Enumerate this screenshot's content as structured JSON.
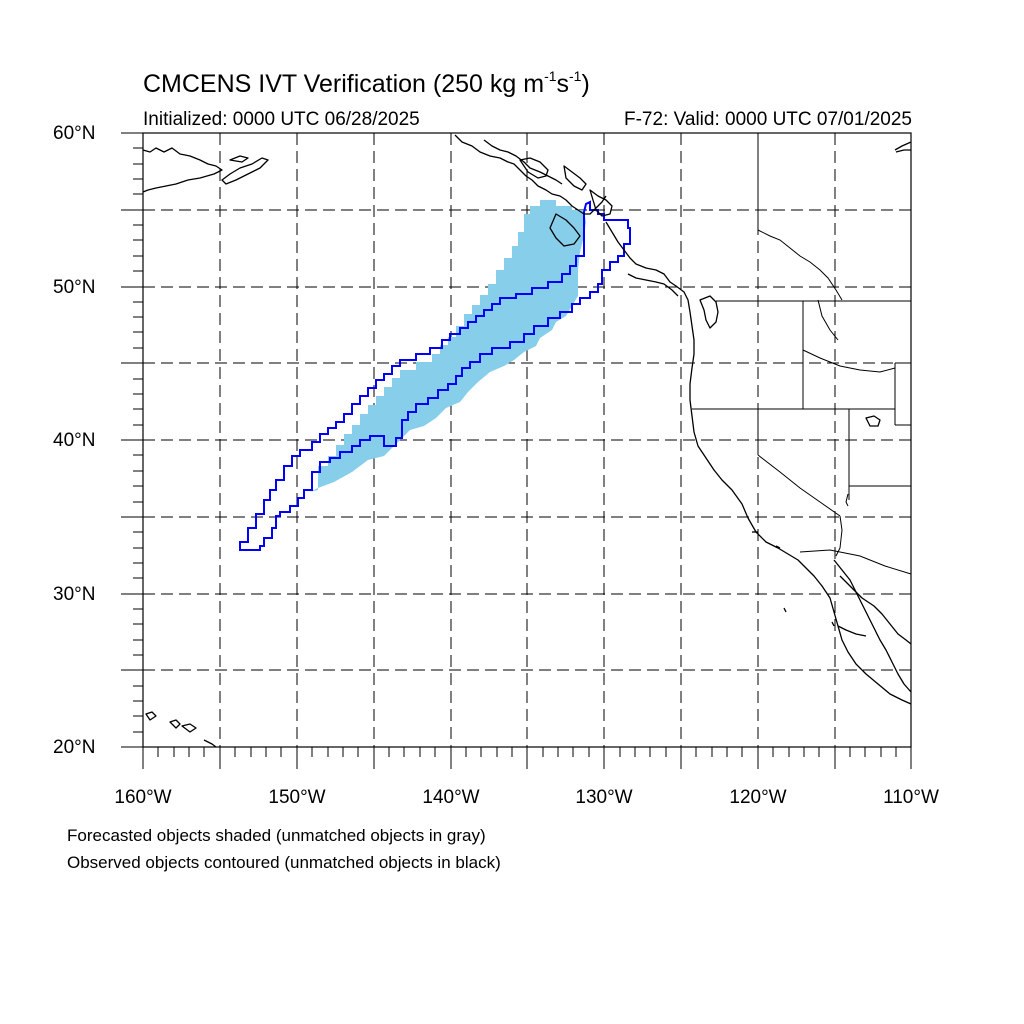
{
  "title": {
    "main": "CMCENS IVT Verification (250 kg m",
    "sup1": "-1",
    "mid": "s",
    "sup2": "-1",
    "end": ")"
  },
  "subtitle_left": "Initialized: 0000 UTC 06/28/2025",
  "subtitle_right": "F-72: Valid: 0000 UTC 07/01/2025",
  "lat_labels": [
    "60°N",
    "50°N",
    "40°N",
    "30°N",
    "20°N"
  ],
  "lon_labels": [
    "160°W",
    "150°W",
    "140°W",
    "130°W",
    "120°W",
    "110°W"
  ],
  "notes": [
    "Forecasted objects shaded (unmatched objects in gray)",
    "Observed objects contoured (unmatched objects in black)"
  ],
  "map": {
    "lat_range": [
      20,
      60
    ],
    "lon_range": [
      -160,
      -110
    ],
    "gridline_interval_deg": 5,
    "forecast_fill_color": "#87ceeb",
    "observed_contour_color": "#0000ff"
  }
}
